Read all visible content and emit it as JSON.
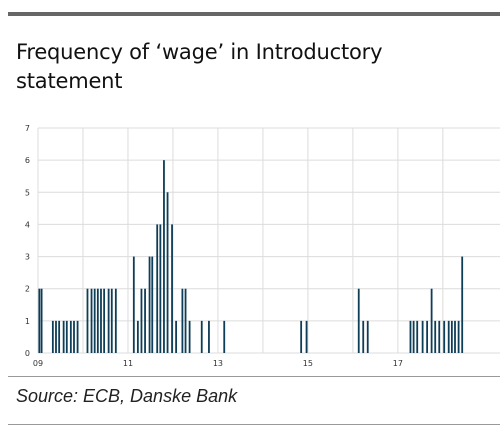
{
  "title": "Frequency of ‘wage’ in Introductory statement",
  "source": "Source: ECB, Danske Bank",
  "colors": {
    "bar": "#0e3d57",
    "grid": "#dcdcdc",
    "rule": "#666666"
  },
  "chart_data": {
    "type": "bar",
    "title": "Frequency of ‘wage’ in Introductory statement",
    "xlabel": "",
    "ylabel": "",
    "ylim": [
      0,
      7
    ],
    "xlim": [
      2009.0,
      2018.47
    ],
    "yticks": [
      "0",
      "1",
      "2",
      "3",
      "4",
      "5",
      "6",
      "7"
    ],
    "xticks": [
      {
        "value": 2009,
        "label": "09"
      },
      {
        "value": 2011,
        "label": "11"
      },
      {
        "value": 2013,
        "label": "13"
      },
      {
        "value": 2015,
        "label": "15"
      },
      {
        "value": 2017,
        "label": "17"
      }
    ],
    "grid": true,
    "series": [
      {
        "points": [
          {
            "x": 2009.03,
            "y": 2
          },
          {
            "x": 2009.08,
            "y": 2
          },
          {
            "x": 2009.33,
            "y": 1
          },
          {
            "x": 2009.4,
            "y": 1
          },
          {
            "x": 2009.47,
            "y": 1
          },
          {
            "x": 2009.57,
            "y": 1
          },
          {
            "x": 2009.64,
            "y": 1
          },
          {
            "x": 2009.73,
            "y": 1
          },
          {
            "x": 2009.8,
            "y": 1
          },
          {
            "x": 2009.88,
            "y": 1
          },
          {
            "x": 2010.1,
            "y": 2
          },
          {
            "x": 2010.19,
            "y": 2
          },
          {
            "x": 2010.26,
            "y": 2
          },
          {
            "x": 2010.33,
            "y": 2
          },
          {
            "x": 2010.4,
            "y": 2
          },
          {
            "x": 2010.47,
            "y": 2
          },
          {
            "x": 2010.57,
            "y": 2
          },
          {
            "x": 2010.64,
            "y": 2
          },
          {
            "x": 2010.73,
            "y": 2
          },
          {
            "x": 2011.13,
            "y": 3
          },
          {
            "x": 2011.22,
            "y": 1
          },
          {
            "x": 2011.3,
            "y": 2
          },
          {
            "x": 2011.38,
            "y": 2
          },
          {
            "x": 2011.48,
            "y": 3
          },
          {
            "x": 2011.54,
            "y": 3
          },
          {
            "x": 2011.65,
            "y": 4
          },
          {
            "x": 2011.72,
            "y": 4
          },
          {
            "x": 2011.8,
            "y": 6
          },
          {
            "x": 2011.88,
            "y": 5
          },
          {
            "x": 2011.98,
            "y": 4
          },
          {
            "x": 2012.07,
            "y": 1
          },
          {
            "x": 2012.21,
            "y": 2
          },
          {
            "x": 2012.28,
            "y": 2
          },
          {
            "x": 2012.37,
            "y": 1
          },
          {
            "x": 2012.64,
            "y": 1
          },
          {
            "x": 2012.8,
            "y": 1
          },
          {
            "x": 2013.14,
            "y": 1
          },
          {
            "x": 2014.85,
            "y": 1
          },
          {
            "x": 2014.97,
            "y": 1
          },
          {
            "x": 2016.13,
            "y": 2
          },
          {
            "x": 2016.23,
            "y": 1
          },
          {
            "x": 2016.33,
            "y": 1
          },
          {
            "x": 2017.28,
            "y": 1
          },
          {
            "x": 2017.35,
            "y": 1
          },
          {
            "x": 2017.43,
            "y": 1
          },
          {
            "x": 2017.55,
            "y": 1
          },
          {
            "x": 2017.65,
            "y": 1
          },
          {
            "x": 2017.75,
            "y": 2
          },
          {
            "x": 2017.83,
            "y": 1
          },
          {
            "x": 2017.92,
            "y": 1
          },
          {
            "x": 2018.03,
            "y": 1
          },
          {
            "x": 2018.13,
            "y": 1
          },
          {
            "x": 2018.2,
            "y": 1
          },
          {
            "x": 2018.27,
            "y": 1
          },
          {
            "x": 2018.35,
            "y": 1
          },
          {
            "x": 2018.43,
            "y": 3
          }
        ]
      }
    ]
  }
}
